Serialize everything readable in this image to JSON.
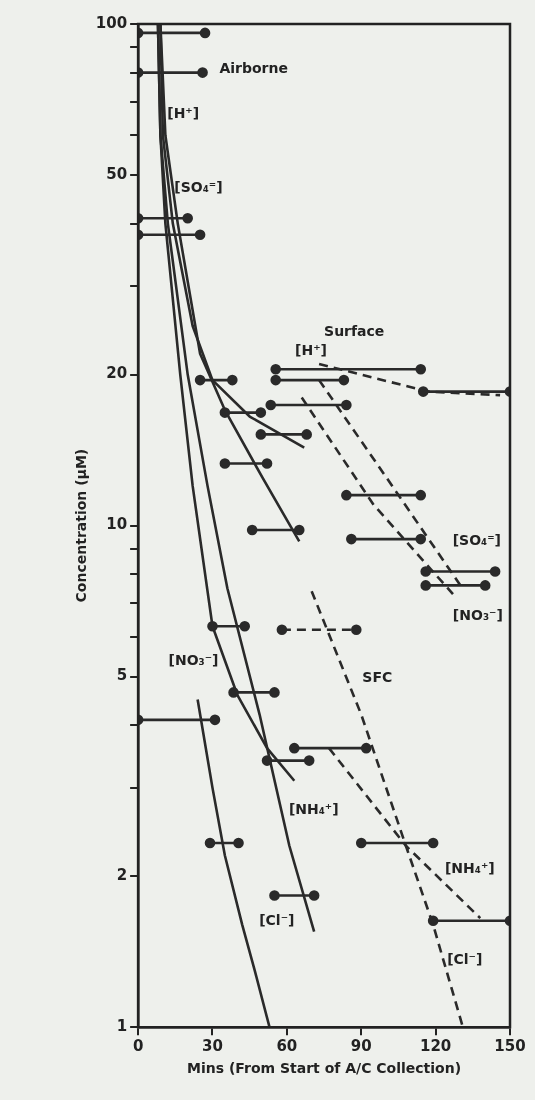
{
  "chart_data": {
    "type": "line",
    "xlabel": "Mins (From Start of A/C Collection)",
    "ylabel": "Concentration (μM)",
    "xlim": [
      0,
      150
    ],
    "xticks": [
      0,
      30,
      60,
      90,
      120,
      150
    ],
    "ylim": [
      1,
      100
    ],
    "yticks": [
      1,
      2,
      {
        "value": 3,
        "label": null
      },
      {
        "value": 4,
        "label": null
      },
      5,
      {
        "value": 6,
        "label": null
      },
      {
        "value": 7,
        "label": null
      },
      {
        "value": 8,
        "label": null
      },
      {
        "value": 9,
        "label": null
      },
      10,
      20,
      {
        "value": 30,
        "label": null
      },
      {
        "value": 40,
        "label": null
      },
      50,
      {
        "value": 60,
        "label": null
      },
      {
        "value": 70,
        "label": null
      },
      {
        "value": 80,
        "label": null
      },
      {
        "value": 90,
        "label": null
      },
      100
    ],
    "log": "y",
    "grid": false,
    "legend": false,
    "series": [
      {
        "name": "[H⁺]",
        "color": "#2a2a2a",
        "line_style": "solid",
        "marker": "none",
        "x": [
          9,
          11,
          16,
          25,
          35,
          50,
          65
        ],
        "values": [
          100,
          60,
          40,
          22,
          17,
          12.5,
          9.3
        ]
      },
      {
        "name": "[SO₄⁼]",
        "color": "#2a2a2a",
        "line_style": "solid",
        "marker": "none",
        "x": [
          9,
          10,
          14,
          22,
          30,
          45,
          67
        ],
        "values": [
          100,
          60,
          40,
          25,
          19.5,
          16.5,
          14.3
        ]
      },
      {
        "name": "[NO₃⁻]",
        "color": "#2a2a2a",
        "line_style": "solid",
        "marker": "none",
        "x": [
          8,
          9,
          11,
          17,
          22,
          30,
          40,
          52,
          63
        ],
        "values": [
          100,
          60,
          40,
          20,
          12,
          6.3,
          4.6,
          3.6,
          3.1
        ]
      },
      {
        "name": "[NH₄⁺]",
        "color": "#2a2a2a",
        "line_style": "solid",
        "marker": "none",
        "x": [
          8,
          9,
          12,
          20,
          28,
          36,
          49,
          61,
          71
        ],
        "values": [
          100,
          60,
          40,
          20,
          12,
          7.5,
          4.2,
          2.3,
          1.55
        ]
      },
      {
        "name": "[Cl⁻]",
        "color": "#2a2a2a",
        "line_style": "solid",
        "marker": "none",
        "x": [
          24,
          30,
          35,
          42,
          47,
          53
        ],
        "values": [
          4.5,
          3,
          2.2,
          1.6,
          1.3,
          1
        ]
      },
      {
        "name": "[H⁺]",
        "color": "#2a2a2a",
        "line_style": "dashed",
        "marker": "none",
        "x": [
          73,
          117,
          146
        ],
        "values": [
          21,
          18.5,
          18.2
        ]
      },
      {
        "name": "[SO₄⁼]",
        "color": "#2a2a2a",
        "line_style": "dashed",
        "marker": "none",
        "x": [
          73,
          100,
          130
        ],
        "values": [
          19.5,
          12.5,
          7.6
        ]
      },
      {
        "name": "[NO₃⁻]",
        "color": "#2a2a2a",
        "line_style": "dashed",
        "marker": "none",
        "x": [
          66,
          95,
          127
        ],
        "values": [
          18,
          11,
          7.3
        ]
      },
      {
        "name": "[Cl⁻]",
        "color": "#2a2a2a",
        "line_style": "dashed",
        "marker": "none",
        "x": [
          70,
          90,
          108,
          119,
          131
        ],
        "values": [
          7.4,
          4.2,
          2.3,
          1.6,
          1
        ]
      },
      {
        "name": "[NH₄⁺]",
        "color": "#2a2a2a",
        "line_style": "dashed",
        "marker": "none",
        "x": [
          77,
          108,
          138
        ],
        "values": [
          3.6,
          2.3,
          1.65
        ]
      },
      {
        "color": "#2a2a2a",
        "line_style": "solid",
        "marker": "circle",
        "x": [
          0,
          27
        ],
        "values": [
          96,
          96
        ]
      },
      {
        "color": "#2a2a2a",
        "line_style": "solid",
        "marker": "circle",
        "x": [
          0,
          26
        ],
        "values": [
          80,
          80
        ]
      },
      {
        "color": "#2a2a2a",
        "line_style": "solid",
        "marker": "circle",
        "x": [
          0,
          20
        ],
        "values": [
          41,
          41
        ]
      },
      {
        "color": "#2a2a2a",
        "line_style": "solid",
        "marker": "circle",
        "x": [
          0,
          25
        ],
        "values": [
          38,
          38
        ]
      },
      {
        "color": "#2a2a2a",
        "line_style": "solid",
        "marker": "circle",
        "x": [
          25,
          38
        ],
        "values": [
          19.5,
          19.5
        ]
      },
      {
        "color": "#2a2a2a",
        "line_style": "solid",
        "marker": "circle",
        "x": [
          35,
          49.5
        ],
        "values": [
          16.8,
          16.8
        ]
      },
      {
        "color": "#2a2a2a",
        "line_style": "solid",
        "marker": "circle",
        "x": [
          49.5,
          68
        ],
        "values": [
          15.2,
          15.2
        ]
      },
      {
        "color": "#2a2a2a",
        "line_style": "solid",
        "marker": "circle",
        "x": [
          35,
          52
        ],
        "values": [
          13.3,
          13.3
        ]
      },
      {
        "color": "#2a2a2a",
        "line_style": "solid",
        "marker": "circle",
        "x": [
          46,
          65
        ],
        "values": [
          9.8,
          9.8
        ]
      },
      {
        "color": "#2a2a2a",
        "line_style": "solid",
        "marker": "circle",
        "x": [
          30,
          43
        ],
        "values": [
          6.3,
          6.3
        ]
      },
      {
        "color": "#2a2a2a",
        "line_style": "solid",
        "marker": "circle",
        "x": [
          38.5,
          55
        ],
        "values": [
          4.65,
          4.65
        ]
      },
      {
        "color": "#2a2a2a",
        "line_style": "solid",
        "marker": "circle",
        "x": [
          0,
          31
        ],
        "values": [
          4.1,
          4.1
        ]
      },
      {
        "color": "#2a2a2a",
        "line_style": "solid",
        "marker": "circle",
        "x": [
          52,
          69
        ],
        "values": [
          3.4,
          3.4
        ]
      },
      {
        "color": "#2a2a2a",
        "line_style": "solid",
        "marker": "circle",
        "x": [
          29,
          40.5
        ],
        "values": [
          2.33,
          2.33
        ]
      },
      {
        "color": "#2a2a2a",
        "line_style": "solid",
        "marker": "circle",
        "x": [
          55,
          71
        ],
        "values": [
          1.83,
          1.83
        ]
      },
      {
        "color": "#2a2a2a",
        "line_style": "solid",
        "marker": "circle",
        "x": [
          55.5,
          114
        ],
        "values": [
          20.5,
          20.5
        ]
      },
      {
        "color": "#2a2a2a",
        "line_style": "solid",
        "marker": "circle",
        "x": [
          55.5,
          83
        ],
        "values": [
          19.5,
          19.5
        ]
      },
      {
        "color": "#2a2a2a",
        "line_style": "solid",
        "marker": "circle",
        "x": [
          53.5,
          84
        ],
        "values": [
          17.4,
          17.4
        ]
      },
      {
        "color": "#2a2a2a",
        "line_style": "solid",
        "marker": "circle",
        "x": [
          115,
          150
        ],
        "values": [
          18.5,
          18.5
        ]
      },
      {
        "color": "#2a2a2a",
        "line_style": "solid",
        "marker": "circle",
        "x": [
          84,
          114
        ],
        "values": [
          11.5,
          11.5
        ]
      },
      {
        "color": "#2a2a2a",
        "line_style": "solid",
        "marker": "circle",
        "x": [
          86,
          114
        ],
        "values": [
          9.4,
          9.4
        ]
      },
      {
        "color": "#2a2a2a",
        "line_style": "solid",
        "marker": "circle",
        "x": [
          116,
          144
        ],
        "values": [
          8.1,
          8.1
        ]
      },
      {
        "color": "#2a2a2a",
        "line_style": "solid",
        "marker": "circle",
        "x": [
          116,
          140
        ],
        "values": [
          7.6,
          7.6
        ]
      },
      {
        "color": "#2a2a2a",
        "line_style": "dashed",
        "marker": "circle",
        "x": [
          58,
          88
        ],
        "values": [
          6.2,
          6.2
        ]
      },
      {
        "color": "#2a2a2a",
        "line_style": "solid",
        "marker": "circle",
        "x": [
          63,
          92
        ],
        "values": [
          3.6,
          3.6
        ]
      },
      {
        "color": "#2a2a2a",
        "line_style": "solid",
        "marker": "circle",
        "x": [
          90,
          119
        ],
        "values": [
          2.33,
          2.33
        ]
      },
      {
        "color": "#2a2a2a",
        "line_style": "solid",
        "marker": "circle",
        "x": [
          119,
          150
        ],
        "values": [
          1.63,
          1.63
        ]
      }
    ],
    "annotations": [
      "Airborne",
      "Surface",
      "SFC"
    ]
  }
}
